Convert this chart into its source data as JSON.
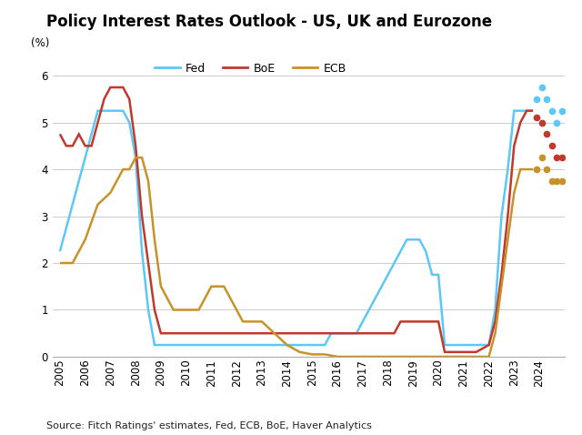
{
  "title": "Policy Interest Rates Outlook - US, UK and Eurozone",
  "ylabel": "(%)",
  "source": "Source: Fitch Ratings' estimates, Fed, ECB, BoE, Haver Analytics",
  "ylim": [
    0,
    6.5
  ],
  "yticks": [
    0,
    1,
    2,
    3,
    4,
    5,
    6
  ],
  "xlim": [
    2004.7,
    2025.0
  ],
  "colors": {
    "fed": "#5BC8F5",
    "boe": "#C0392B",
    "ecb": "#C8922A"
  },
  "fed_solid": {
    "x": [
      2005.0,
      2005.25,
      2005.5,
      2005.75,
      2006.0,
      2006.25,
      2006.5,
      2006.75,
      2007.0,
      2007.25,
      2007.5,
      2007.75,
      2008.0,
      2008.25,
      2008.5,
      2008.75,
      2009.0,
      2009.5,
      2010.0,
      2010.5,
      2011.0,
      2011.5,
      2012.0,
      2012.5,
      2013.0,
      2013.5,
      2014.0,
      2014.5,
      2015.0,
      2015.25,
      2015.5,
      2015.75,
      2016.0,
      2016.25,
      2016.5,
      2016.75,
      2017.0,
      2017.25,
      2017.5,
      2017.75,
      2018.0,
      2018.25,
      2018.5,
      2018.75,
      2019.0,
      2019.25,
      2019.5,
      2019.75,
      2020.0,
      2020.25,
      2020.5,
      2020.75,
      2021.0,
      2021.25,
      2021.5,
      2021.75,
      2022.0,
      2022.25,
      2022.5,
      2022.75,
      2023.0,
      2023.25,
      2023.5,
      2023.75
    ],
    "y": [
      2.25,
      2.75,
      3.25,
      3.75,
      4.25,
      4.75,
      5.25,
      5.25,
      5.25,
      5.25,
      5.25,
      5.0,
      4.25,
      2.25,
      1.0,
      0.25,
      0.25,
      0.25,
      0.25,
      0.25,
      0.25,
      0.25,
      0.25,
      0.25,
      0.25,
      0.25,
      0.25,
      0.25,
      0.25,
      0.25,
      0.25,
      0.5,
      0.5,
      0.5,
      0.5,
      0.5,
      0.75,
      1.0,
      1.25,
      1.5,
      1.75,
      2.0,
      2.25,
      2.5,
      2.5,
      2.5,
      2.25,
      1.75,
      1.75,
      0.25,
      0.25,
      0.25,
      0.25,
      0.25,
      0.25,
      0.25,
      0.25,
      1.0,
      3.0,
      4.0,
      5.25,
      5.25,
      5.25,
      5.25
    ]
  },
  "fed_dotted": {
    "x": [
      2023.9,
      2024.1,
      2024.3,
      2024.5,
      2024.7,
      2024.9
    ],
    "y": [
      5.5,
      5.75,
      5.5,
      5.25,
      5.0,
      5.25
    ]
  },
  "boe_solid": {
    "x": [
      2005.0,
      2005.25,
      2005.5,
      2005.75,
      2006.0,
      2006.25,
      2006.5,
      2006.75,
      2007.0,
      2007.25,
      2007.5,
      2007.75,
      2008.0,
      2008.25,
      2008.5,
      2008.75,
      2009.0,
      2009.5,
      2010.0,
      2010.5,
      2011.0,
      2011.5,
      2012.0,
      2012.5,
      2013.0,
      2013.5,
      2014.0,
      2014.5,
      2015.0,
      2015.5,
      2016.0,
      2016.5,
      2017.0,
      2017.5,
      2018.0,
      2018.25,
      2018.5,
      2018.75,
      2019.0,
      2019.25,
      2019.5,
      2019.75,
      2020.0,
      2020.25,
      2020.5,
      2020.75,
      2021.0,
      2021.5,
      2022.0,
      2022.25,
      2022.5,
      2022.75,
      2023.0,
      2023.25,
      2023.5,
      2023.75
    ],
    "y": [
      4.75,
      4.5,
      4.5,
      4.75,
      4.5,
      4.5,
      5.0,
      5.5,
      5.75,
      5.75,
      5.75,
      5.5,
      4.5,
      3.0,
      2.0,
      1.0,
      0.5,
      0.5,
      0.5,
      0.5,
      0.5,
      0.5,
      0.5,
      0.5,
      0.5,
      0.5,
      0.5,
      0.5,
      0.5,
      0.5,
      0.5,
      0.5,
      0.5,
      0.5,
      0.5,
      0.5,
      0.75,
      0.75,
      0.75,
      0.75,
      0.75,
      0.75,
      0.75,
      0.1,
      0.1,
      0.1,
      0.1,
      0.1,
      0.25,
      0.75,
      1.75,
      3.0,
      4.5,
      5.0,
      5.25,
      5.25
    ]
  },
  "boe_dotted": {
    "x": [
      2023.9,
      2024.1,
      2024.3,
      2024.5,
      2024.7,
      2024.9
    ],
    "y": [
      5.1,
      5.0,
      4.75,
      4.5,
      4.25,
      4.25
    ]
  },
  "ecb_solid": {
    "x": [
      2005.0,
      2005.5,
      2006.0,
      2006.5,
      2007.0,
      2007.25,
      2007.5,
      2007.75,
      2008.0,
      2008.25,
      2008.5,
      2008.75,
      2009.0,
      2009.25,
      2009.5,
      2009.75,
      2010.0,
      2010.25,
      2010.5,
      2010.75,
      2011.0,
      2011.25,
      2011.5,
      2011.75,
      2012.0,
      2012.25,
      2012.5,
      2012.75,
      2013.0,
      2013.5,
      2014.0,
      2014.5,
      2015.0,
      2015.5,
      2016.0,
      2016.5,
      2017.0,
      2017.5,
      2018.0,
      2018.5,
      2019.0,
      2019.5,
      2020.0,
      2020.5,
      2021.0,
      2021.5,
      2022.0,
      2022.25,
      2022.5,
      2022.75,
      2023.0,
      2023.25,
      2023.5,
      2023.75
    ],
    "y": [
      2.0,
      2.0,
      2.5,
      3.25,
      3.5,
      3.75,
      4.0,
      4.0,
      4.25,
      4.25,
      3.75,
      2.5,
      1.5,
      1.25,
      1.0,
      1.0,
      1.0,
      1.0,
      1.0,
      1.25,
      1.5,
      1.5,
      1.5,
      1.25,
      1.0,
      0.75,
      0.75,
      0.75,
      0.75,
      0.5,
      0.25,
      0.1,
      0.05,
      0.05,
      0.0,
      0.0,
      0.0,
      0.0,
      0.0,
      0.0,
      0.0,
      0.0,
      0.0,
      0.0,
      0.0,
      0.0,
      0.0,
      0.5,
      1.5,
      2.5,
      3.5,
      4.0,
      4.0,
      4.0
    ]
  },
  "ecb_dotted": {
    "x": [
      2023.9,
      2024.1,
      2024.3,
      2024.5,
      2024.7,
      2024.9
    ],
    "y": [
      4.0,
      4.25,
      4.0,
      3.75,
      3.75,
      3.75
    ]
  }
}
